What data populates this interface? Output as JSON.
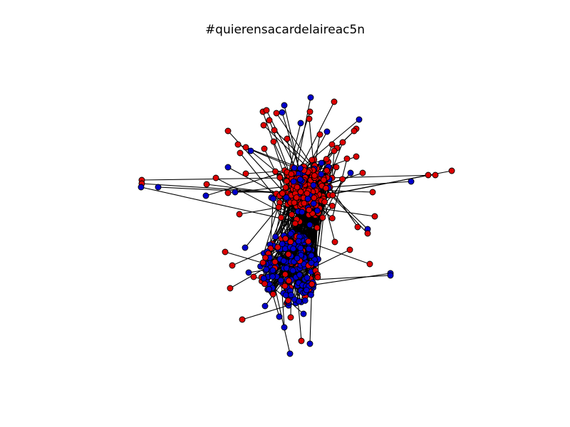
{
  "title": "#quierensacardelaireac5n",
  "colors": {
    "group_a": "#dd0000",
    "group_b": "#0000cc",
    "edge": "#000000"
  },
  "graph": {
    "type": "network",
    "layout": "force-directed",
    "node_groups": [
      "red",
      "blue"
    ]
  }
}
